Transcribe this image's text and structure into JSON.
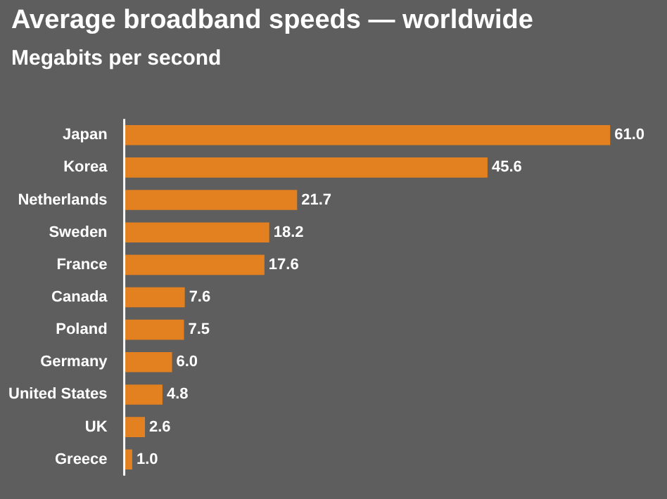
{
  "chart_data": {
    "type": "bar",
    "orientation": "horizontal",
    "title": "Average broadband speeds — worldwide",
    "subtitle": "Megabits per second",
    "categories": [
      "Japan",
      "Korea",
      "Netherlands",
      "Sweden",
      "France",
      "Canada",
      "Poland",
      "Germany",
      "United States",
      "UK",
      "Greece"
    ],
    "values": [
      61.0,
      45.6,
      21.7,
      18.2,
      17.6,
      7.6,
      7.5,
      6.0,
      4.8,
      2.6,
      1.0
    ],
    "value_labels": [
      "61.0",
      "45.6",
      "21.7",
      "18.2",
      "17.6",
      "7.6",
      "7.5",
      "6.0",
      "4.8",
      "2.6",
      "1.0"
    ],
    "color": "#e3801f",
    "grid": false,
    "legend": false
  }
}
